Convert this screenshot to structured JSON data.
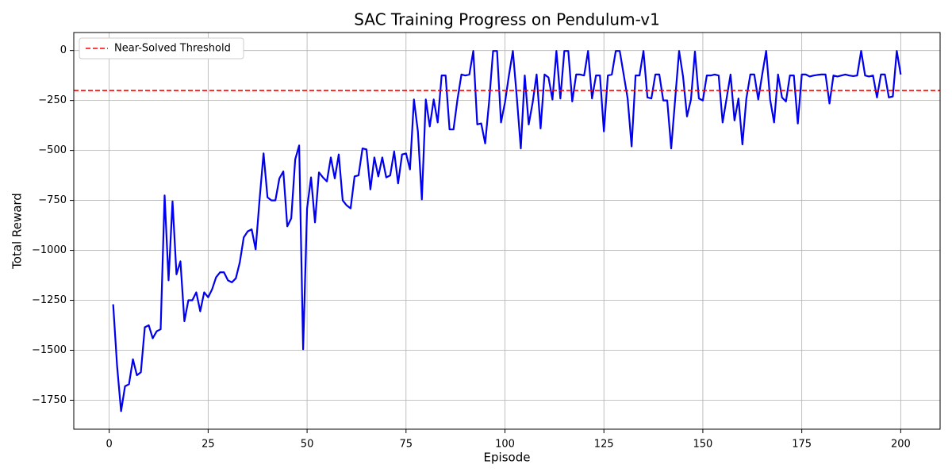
{
  "chart_data": {
    "type": "line",
    "title": "SAC Training Progress on Pendulum-v1",
    "x_label": "Episode",
    "y_label": "Total Reward",
    "xlim": [
      -8.95,
      209.95
    ],
    "ylim": [
      -1895,
      90
    ],
    "xticks": [
      0,
      25,
      50,
      75,
      100,
      125,
      150,
      175,
      200
    ],
    "yticks": [
      {
        "value": 0,
        "label": "0"
      },
      {
        "value": -250,
        "label": "−250"
      },
      {
        "value": -500,
        "label": "−500"
      },
      {
        "value": -750,
        "label": "−750"
      },
      {
        "value": -1000,
        "label": "−1000"
      },
      {
        "value": -1250,
        "label": "−1250"
      },
      {
        "value": -1500,
        "label": "−1500"
      },
      {
        "value": -1750,
        "label": "−1750"
      }
    ],
    "grid": true,
    "legend": "upper left",
    "threshold": {
      "name": "Near-Solved Threshold",
      "value": -200,
      "color": "#ff0000"
    },
    "x": [
      1,
      2,
      3,
      4,
      5,
      6,
      7,
      8,
      9,
      10,
      11,
      12,
      13,
      14,
      15,
      16,
      17,
      18,
      19,
      20,
      21,
      22,
      23,
      24,
      25,
      26,
      27,
      28,
      29,
      30,
      31,
      32,
      33,
      34,
      35,
      36,
      37,
      38,
      39,
      40,
      41,
      42,
      43,
      44,
      45,
      46,
      47,
      48,
      49,
      50,
      51,
      52,
      53,
      54,
      55,
      56,
      57,
      58,
      59,
      60,
      61,
      62,
      63,
      64,
      65,
      66,
      67,
      68,
      69,
      70,
      71,
      72,
      73,
      74,
      75,
      76,
      77,
      78,
      79,
      80,
      81,
      82,
      83,
      84,
      85,
      86,
      87,
      88,
      89,
      90,
      91,
      92,
      93,
      94,
      95,
      96,
      97,
      98,
      99,
      100,
      101,
      102,
      103,
      104,
      105,
      106,
      107,
      108,
      109,
      110,
      111,
      112,
      113,
      114,
      115,
      116,
      117,
      118,
      119,
      120,
      121,
      122,
      123,
      124,
      125,
      126,
      127,
      128,
      129,
      130,
      131,
      132,
      133,
      134,
      135,
      136,
      137,
      138,
      139,
      140,
      141,
      142,
      143,
      144,
      145,
      146,
      147,
      148,
      149,
      150,
      151,
      152,
      153,
      154,
      155,
      156,
      157,
      158,
      159,
      160,
      161,
      162,
      163,
      164,
      165,
      166,
      167,
      168,
      169,
      170,
      171,
      172,
      173,
      174,
      175,
      176,
      177,
      178,
      179,
      180,
      181,
      182,
      183,
      184,
      185,
      186,
      187,
      188,
      189,
      190,
      191,
      192,
      193,
      194,
      195,
      196,
      197,
      198,
      199,
      200
    ],
    "series": [
      {
        "color": "#0000ee",
        "values": [
          -1270,
          -1580,
          -1805,
          -1680,
          -1670,
          -1545,
          -1625,
          -1610,
          -1385,
          -1375,
          -1440,
          -1405,
          -1395,
          -725,
          -1150,
          -755,
          -1120,
          -1055,
          -1355,
          -1250,
          -1250,
          -1210,
          -1305,
          -1210,
          -1235,
          -1195,
          -1135,
          -1110,
          -1110,
          -1150,
          -1160,
          -1140,
          -1060,
          -935,
          -905,
          -895,
          -995,
          -745,
          -515,
          -735,
          -750,
          -750,
          -640,
          -605,
          -880,
          -840,
          -545,
          -475,
          -1495,
          -790,
          -635,
          -860,
          -610,
          -635,
          -655,
          -535,
          -640,
          -520,
          -750,
          -775,
          -790,
          -630,
          -625,
          -490,
          -495,
          -695,
          -535,
          -630,
          -535,
          -635,
          -625,
          -505,
          -665,
          -520,
          -515,
          -595,
          -245,
          -405,
          -745,
          -245,
          -380,
          -245,
          -360,
          -125,
          -125,
          -395,
          -395,
          -245,
          -120,
          -125,
          -120,
          -2,
          -370,
          -365,
          -465,
          -255,
          -2,
          -2,
          -360,
          -260,
          -125,
          -2,
          -235,
          -490,
          -125,
          -370,
          -260,
          -120,
          -390,
          -120,
          -135,
          -245,
          -2,
          -240,
          -2,
          -2,
          -255,
          -120,
          -120,
          -125,
          -2,
          -240,
          -125,
          -125,
          -405,
          -125,
          -120,
          -2,
          -2,
          -120,
          -240,
          -480,
          -125,
          -125,
          -2,
          -235,
          -240,
          -120,
          -120,
          -250,
          -250,
          -490,
          -245,
          -2,
          -130,
          -330,
          -245,
          -5,
          -240,
          -250,
          -125,
          -125,
          -120,
          -125,
          -360,
          -240,
          -120,
          -350,
          -240,
          -470,
          -240,
          -120,
          -120,
          -245,
          -120,
          -2,
          -245,
          -360,
          -120,
          -235,
          -255,
          -125,
          -125,
          -365,
          -120,
          -120,
          -130,
          -125,
          -122,
          -120,
          -120,
          -265,
          -125,
          -130,
          -125,
          -120,
          -125,
          -128,
          -125,
          -2,
          -125,
          -130,
          -125,
          -235,
          -120,
          -120,
          -235,
          -230,
          -2,
          -120
        ]
      }
    ]
  }
}
